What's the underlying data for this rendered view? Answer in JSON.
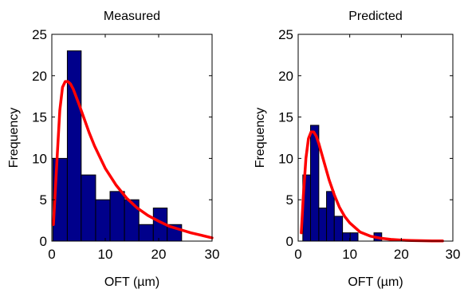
{
  "colors": {
    "bar": "#00008B",
    "fit": "#FF0000"
  },
  "chart_data": [
    {
      "type": "bar",
      "title": "Measured",
      "xlabel": "OFT (µm)",
      "ylabel": "Frequency",
      "xlim": [
        0,
        30
      ],
      "ylim": [
        0,
        25
      ],
      "xticks": [
        0,
        10,
        20,
        30
      ],
      "yticks": [
        0,
        5,
        10,
        15,
        20,
        25
      ],
      "bins": [
        {
          "x0": 0.2,
          "x1": 2.9,
          "value": 10
        },
        {
          "x0": 2.9,
          "x1": 5.5,
          "value": 23
        },
        {
          "x0": 5.5,
          "x1": 8.2,
          "value": 8
        },
        {
          "x0": 8.2,
          "x1": 10.9,
          "value": 5
        },
        {
          "x0": 10.9,
          "x1": 13.6,
          "value": 6
        },
        {
          "x0": 13.6,
          "x1": 16.3,
          "value": 5
        },
        {
          "x0": 16.3,
          "x1": 19.0,
          "value": 2
        },
        {
          "x0": 19.0,
          "x1": 21.6,
          "value": 4
        },
        {
          "x0": 21.6,
          "x1": 24.3,
          "value": 2
        }
      ],
      "fit_curve": {
        "x": [
          0.3,
          1.0,
          1.5,
          2.0,
          2.5,
          3.0,
          3.5,
          4.0,
          5.0,
          6.0,
          7.0,
          8.0,
          10.0,
          12.0,
          14.0,
          16.0,
          18.0,
          20.0,
          22.0,
          24.0,
          26.0,
          28.0,
          30.0
        ],
        "y": [
          2.0,
          10.2,
          15.8,
          18.6,
          19.3,
          19.3,
          19.0,
          18.4,
          16.7,
          14.9,
          13.1,
          11.5,
          8.8,
          6.8,
          5.2,
          4.0,
          3.1,
          2.4,
          1.8,
          1.4,
          1.0,
          0.7,
          0.4
        ]
      }
    },
    {
      "type": "bar",
      "title": "Predicted",
      "xlabel": "OFT (µm)",
      "ylabel": "Frequency",
      "xlim": [
        0,
        30
      ],
      "ylim": [
        0,
        25
      ],
      "xticks": [
        0,
        10,
        20,
        30
      ],
      "yticks": [
        0,
        5,
        10,
        15,
        20,
        25
      ],
      "bins": [
        {
          "x0": 0.9,
          "x1": 2.4,
          "value": 8
        },
        {
          "x0": 2.4,
          "x1": 4.0,
          "value": 14
        },
        {
          "x0": 4.0,
          "x1": 5.5,
          "value": 4
        },
        {
          "x0": 5.5,
          "x1": 7.0,
          "value": 6
        },
        {
          "x0": 7.0,
          "x1": 8.6,
          "value": 3
        },
        {
          "x0": 8.6,
          "x1": 10.1,
          "value": 1
        },
        {
          "x0": 10.1,
          "x1": 11.6,
          "value": 1
        },
        {
          "x0": 11.6,
          "x1": 13.2,
          "value": 0
        },
        {
          "x0": 13.2,
          "x1": 14.7,
          "value": 0
        },
        {
          "x0": 14.7,
          "x1": 16.2,
          "value": 1
        }
      ],
      "fit_curve": {
        "x": [
          0.6,
          1.0,
          1.5,
          2.0,
          2.5,
          3.0,
          3.5,
          4.0,
          5.0,
          6.0,
          7.0,
          8.0,
          9.0,
          10.0,
          12.0,
          14.0,
          16.0,
          18.0,
          20.0,
          22.0,
          24.0,
          26.0,
          28.0
        ],
        "y": [
          1.0,
          5.5,
          10.0,
          12.4,
          13.2,
          13.2,
          12.7,
          11.8,
          9.6,
          7.4,
          5.6,
          4.1,
          3.0,
          2.2,
          1.1,
          0.6,
          0.35,
          0.2,
          0.12,
          0.08,
          0.05,
          0.03,
          0.02
        ]
      }
    }
  ]
}
